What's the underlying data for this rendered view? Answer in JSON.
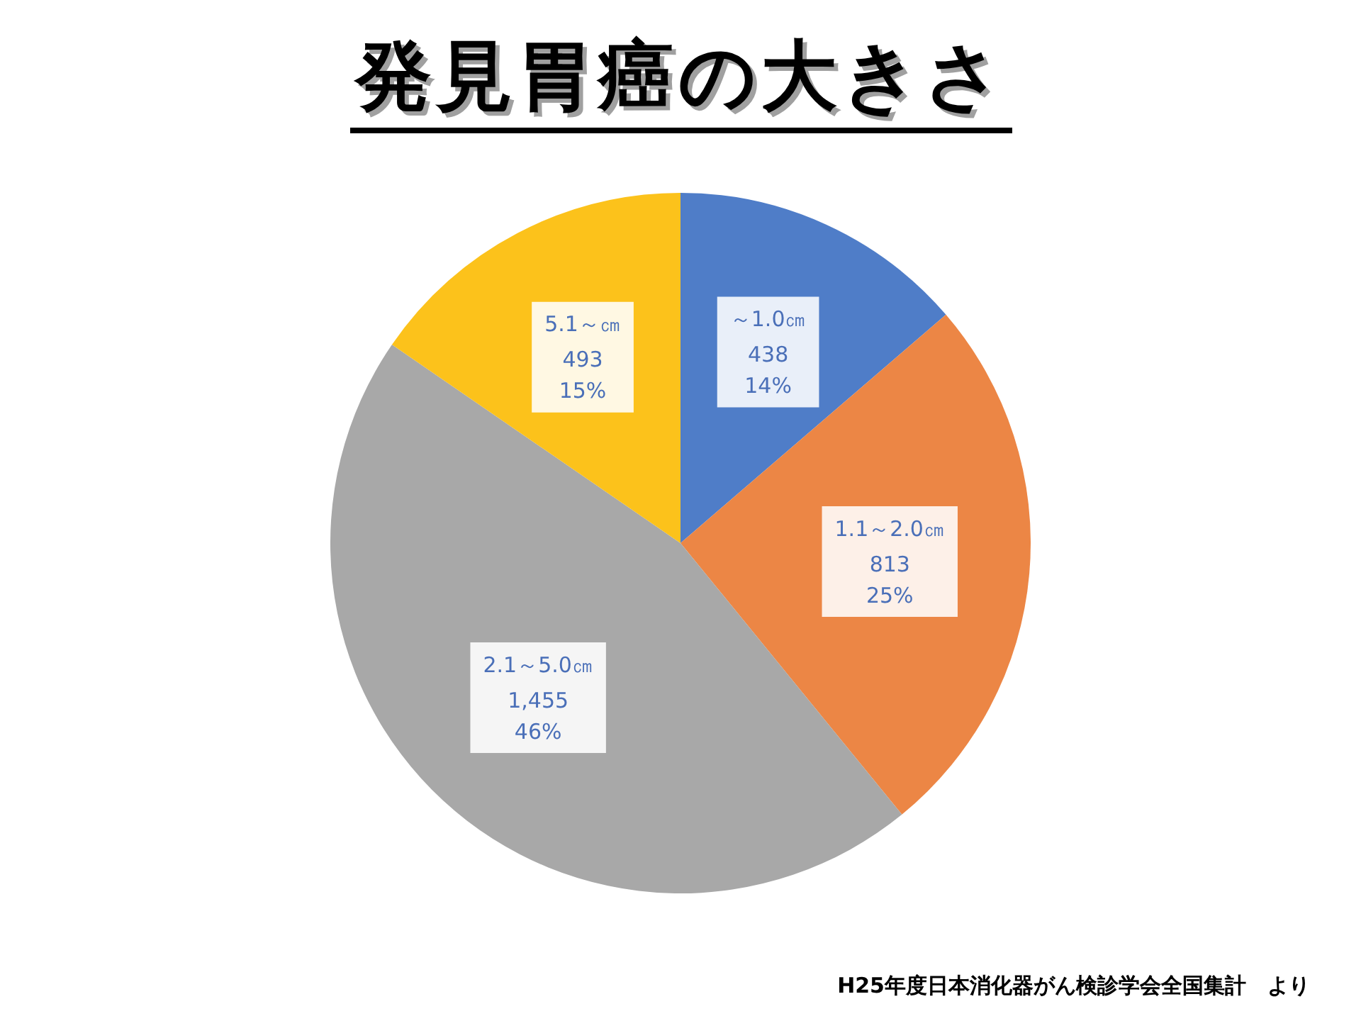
{
  "chart_data": {
    "type": "pie",
    "title": "発見胃癌の大きさ",
    "categories": [
      "～1.0㎝",
      "1.1～2.0㎝",
      "2.1～5.0㎝",
      "5.1～㎝"
    ],
    "values": [
      438,
      813,
      1455,
      493
    ],
    "value_labels": [
      "438\n14%",
      "813\n25%",
      "1,455\n46%",
      "493\n15%"
    ],
    "colors": [
      "#4f7dc8",
      "#ec8645",
      "#a8a8a8",
      "#fcc21b"
    ],
    "annotations": [
      "H25年度日本消化器がん検診学会全国集計　より"
    ]
  }
}
